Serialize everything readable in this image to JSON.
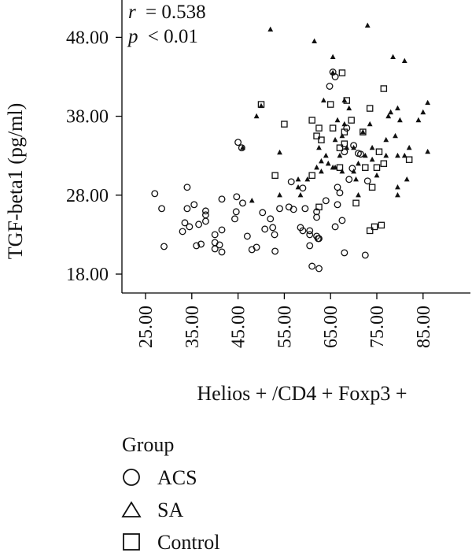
{
  "chart_data": {
    "type": "scatter",
    "xlabel": "Helios + /CD4 + Foxp3 +",
    "ylabel": "TGF-beta1 (pg/ml)",
    "annotation": {
      "r_label": "r",
      "r_value": "= 0.538",
      "p_label": "p",
      "p_value": "< 0.01"
    },
    "xlim": [
      20,
      90
    ],
    "ylim": [
      17,
      51
    ],
    "x_ticks": [
      "25.00",
      "35.00",
      "45.00",
      "55.00",
      "65.00",
      "75.00",
      "85.00"
    ],
    "y_ticks": [
      "18.00",
      "28.00",
      "38.00",
      "48.00"
    ],
    "legend": {
      "title": "Group",
      "entries": [
        "ACS",
        "SA",
        "Control"
      ]
    },
    "series": [
      {
        "name": "ACS",
        "marker": "circle",
        "points": [
          [
            27,
            28.2
          ],
          [
            28.5,
            26.3
          ],
          [
            29,
            21.5
          ],
          [
            33,
            23.4
          ],
          [
            33.5,
            24.5
          ],
          [
            34,
            29
          ],
          [
            34,
            26.3
          ],
          [
            34.5,
            24
          ],
          [
            35.5,
            26.8
          ],
          [
            36,
            21.6
          ],
          [
            36.5,
            24.3
          ],
          [
            37,
            21.8
          ],
          [
            38,
            26
          ],
          [
            38,
            25.5
          ],
          [
            38,
            24.7
          ],
          [
            40,
            23
          ],
          [
            40,
            22
          ],
          [
            40,
            21.2
          ],
          [
            41,
            21.7
          ],
          [
            41.5,
            27.5
          ],
          [
            41.5,
            23.6
          ],
          [
            41.5,
            20.8
          ],
          [
            44.3,
            25
          ],
          [
            44.6,
            25.9
          ],
          [
            44.7,
            27.8
          ],
          [
            45,
            34.7
          ],
          [
            45.8,
            34
          ],
          [
            46,
            27
          ],
          [
            47,
            22.8
          ],
          [
            48,
            21.1
          ],
          [
            49,
            21.4
          ],
          [
            50.3,
            25.8
          ],
          [
            50.8,
            23.7
          ],
          [
            52,
            25
          ],
          [
            52.5,
            23.9
          ],
          [
            52.9,
            23
          ],
          [
            53,
            20.9
          ],
          [
            54,
            26.3
          ],
          [
            56,
            26.5
          ],
          [
            56.5,
            29.7
          ],
          [
            57,
            26.2
          ],
          [
            58.5,
            23.9
          ],
          [
            59,
            28.9
          ],
          [
            59,
            23.5
          ],
          [
            59.5,
            26.3
          ],
          [
            60.5,
            23.5
          ],
          [
            60.5,
            23
          ],
          [
            60.5,
            21.6
          ],
          [
            61,
            19
          ],
          [
            62,
            25.9
          ],
          [
            62,
            25.2
          ],
          [
            62,
            22.8
          ],
          [
            62.3,
            22.5
          ],
          [
            62.5,
            22.5
          ],
          [
            62.5,
            18.7
          ],
          [
            64,
            27.3
          ],
          [
            64.8,
            41.8
          ],
          [
            65.5,
            43.6
          ],
          [
            66,
            43
          ],
          [
            66,
            24
          ],
          [
            66.5,
            29
          ],
          [
            66.5,
            26.8
          ],
          [
            67,
            28.3
          ],
          [
            67.5,
            24.8
          ],
          [
            68,
            20.7
          ],
          [
            68,
            33.5
          ],
          [
            68.5,
            36.5
          ],
          [
            69,
            30
          ],
          [
            69.7,
            31.4
          ],
          [
            70,
            34.3
          ],
          [
            71,
            33.3
          ],
          [
            71.5,
            33.2
          ],
          [
            72.5,
            20.4
          ],
          [
            73,
            29.8
          ]
        ]
      },
      {
        "name": "SA",
        "marker": "triangle",
        "points": [
          [
            46,
            34
          ],
          [
            48,
            27.3
          ],
          [
            49,
            38
          ],
          [
            50,
            39.3
          ],
          [
            52,
            49
          ],
          [
            54,
            28
          ],
          [
            54,
            33.4
          ],
          [
            58,
            29
          ],
          [
            58,
            30
          ],
          [
            58.5,
            28
          ],
          [
            60,
            30
          ],
          [
            61.5,
            47.5
          ],
          [
            62,
            31.5
          ],
          [
            62.5,
            34
          ],
          [
            63,
            32.3
          ],
          [
            63,
            31
          ],
          [
            63.5,
            40
          ],
          [
            64,
            33
          ],
          [
            64.5,
            32
          ],
          [
            65.5,
            45.5
          ],
          [
            65.5,
            43.5
          ],
          [
            65.5,
            31.5
          ],
          [
            66,
            35
          ],
          [
            66,
            31.5
          ],
          [
            66.5,
            37.5
          ],
          [
            67,
            33
          ],
          [
            67.5,
            35.5
          ],
          [
            67.5,
            31
          ],
          [
            68,
            40
          ],
          [
            68,
            37
          ],
          [
            68.5,
            34
          ],
          [
            69,
            39
          ],
          [
            70,
            34
          ],
          [
            70,
            31
          ],
          [
            70.5,
            30
          ],
          [
            71,
            32
          ],
          [
            71,
            28
          ],
          [
            72,
            36
          ],
          [
            72.5,
            33
          ],
          [
            73,
            49.5
          ],
          [
            73.5,
            37
          ],
          [
            74,
            34
          ],
          [
            74,
            32.5
          ],
          [
            75,
            30.5
          ],
          [
            77,
            35
          ],
          [
            77,
            33
          ],
          [
            77.5,
            38
          ],
          [
            78,
            38.5
          ],
          [
            78.5,
            45.5
          ],
          [
            79,
            35.5
          ],
          [
            79.5,
            39
          ],
          [
            79.5,
            33
          ],
          [
            79.5,
            29
          ],
          [
            79.5,
            28
          ],
          [
            80,
            37.5
          ],
          [
            81,
            45
          ],
          [
            81,
            33
          ],
          [
            81.5,
            30
          ],
          [
            82,
            34
          ],
          [
            84,
            37.5
          ],
          [
            85,
            38.5
          ],
          [
            86,
            39.7
          ],
          [
            86,
            33.5
          ]
        ]
      },
      {
        "name": "Control",
        "marker": "square",
        "points": [
          [
            50,
            39.5
          ],
          [
            53,
            30.5
          ],
          [
            55,
            37
          ],
          [
            61,
            37.5
          ],
          [
            61,
            30.5
          ],
          [
            62,
            35.5
          ],
          [
            62.5,
            36.5
          ],
          [
            62.5,
            26.5
          ],
          [
            63,
            35
          ],
          [
            65,
            39.5
          ],
          [
            65.5,
            36.5
          ],
          [
            67,
            34
          ],
          [
            67,
            31.5
          ],
          [
            67.5,
            43.5
          ],
          [
            68,
            36
          ],
          [
            68,
            34.5
          ],
          [
            68.5,
            40
          ],
          [
            69.5,
            37.5
          ],
          [
            70.5,
            27
          ],
          [
            72,
            36
          ],
          [
            72.5,
            31.5
          ],
          [
            73.5,
            39
          ],
          [
            73.5,
            23.5
          ],
          [
            74,
            29
          ],
          [
            74.5,
            24
          ],
          [
            75,
            31.5
          ],
          [
            75.5,
            33.5
          ],
          [
            76,
            24.2
          ],
          [
            76.5,
            32
          ],
          [
            76.5,
            41.5
          ],
          [
            82,
            32.5
          ]
        ]
      }
    ]
  }
}
